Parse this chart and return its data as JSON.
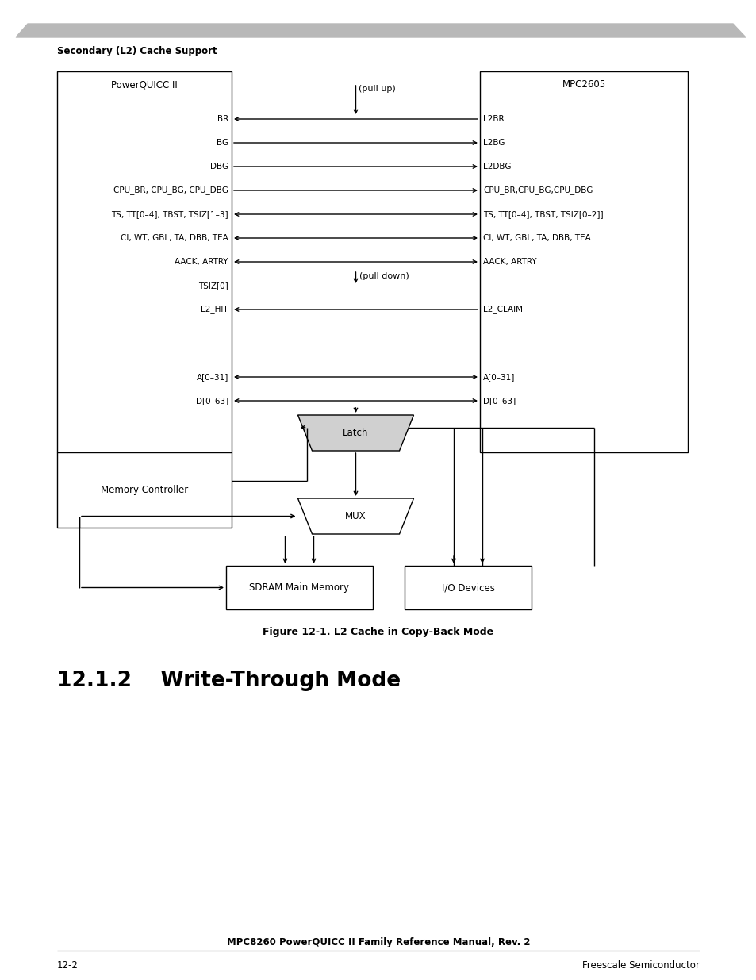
{
  "title_header": "Secondary (L2) Cache Support",
  "fig_caption": "Figure 12-1. L2 Cache in Copy-Back Mode",
  "section_title": "12.1.2    Write-Through Mode",
  "footer_center": "MPC8260 PowerQUICC II Family Reference Manual, Rev. 2",
  "footer_left": "12-2",
  "footer_right": "Freescale Semiconductor",
  "bg_color": "#ffffff",
  "box_left_label": "PowerQUICC II",
  "box_right_label": "MPC2605",
  "box_mem_label": "Memory Controller",
  "box_sdram_label": "SDRAM Main Memory",
  "box_io_label": "I/O Devices",
  "box_latch_label": "Latch",
  "box_mux_label": "MUX",
  "pullup_label": "(pull up)",
  "pulldown_label": "(pull down)",
  "line_color": "#000000",
  "text_color": "#000000"
}
